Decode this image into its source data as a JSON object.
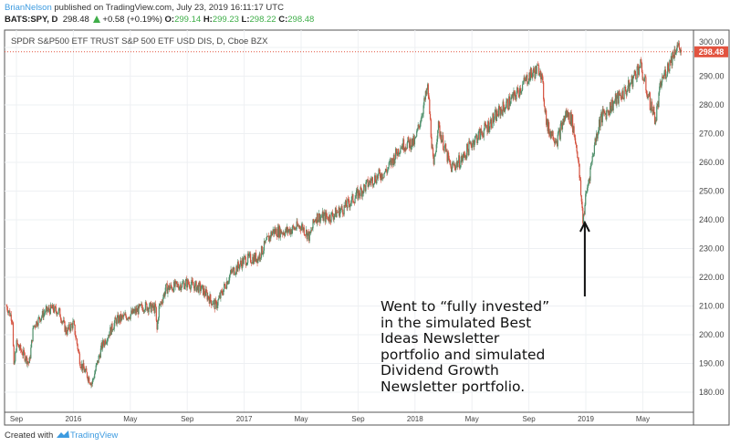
{
  "header": {
    "author": "BrianNelson",
    "published": " published on TradingView.com, July 23, 2019 16:11:17 UTC",
    "symbol": "BATS:SPY, D",
    "last": "298.48",
    "change": "+0.58 (+0.19%)",
    "o_label": "O:",
    "o": "299.14",
    "h_label": "H:",
    "h": "299.23",
    "l_label": "L:",
    "l": "298.22",
    "c_label": "C:",
    "c": "298.48"
  },
  "footer": {
    "created_with": "Created with",
    "brand": "TradingView"
  },
  "annotation": "Went to “fully invested”\nin the simulated Best\nIdeas Newsletter\nportfolio and simulated\nDividend Growth\nNewsletter portfolio.",
  "colors": {
    "up": "#4d8f6a",
    "down": "#d4513e",
    "price_label": "#e2533f",
    "author": "#3d9be0",
    "positive": "#3fae49"
  },
  "chart_data": {
    "type": "candlestick",
    "title": "SPDR S&P500 ETF TRUST S&P 500 ETF USD DIS, D, Cboe BZX",
    "last_price_label": "298.48",
    "last_price": 298.48,
    "ylim": [
      172,
      304
    ],
    "y_ticks": [
      180,
      190,
      200,
      210,
      220,
      230,
      240,
      250,
      260,
      270,
      280,
      290,
      300
    ],
    "y_tick_labels": [
      "180.00",
      "190.00",
      "200.00",
      "210.00",
      "220.00",
      "230.00",
      "240.00",
      "250.00",
      "260.00",
      "270.00",
      "280.00",
      "290.00",
      "300.00"
    ],
    "x_ticks": [
      {
        "label": "Sep",
        "month": 0
      },
      {
        "label": "2016",
        "month": 4
      },
      {
        "label": "May",
        "month": 8
      },
      {
        "label": "Sep",
        "month": 12
      },
      {
        "label": "2017",
        "month": 16
      },
      {
        "label": "May",
        "month": 20
      },
      {
        "label": "Sep",
        "month": 24
      },
      {
        "label": "2018",
        "month": 28
      },
      {
        "label": "May",
        "month": 32
      },
      {
        "label": "Sep",
        "month": 36
      },
      {
        "label": "2019",
        "month": 40
      },
      {
        "label": "May",
        "month": 44
      }
    ],
    "x_unit": "months since Sep 1 2015",
    "price_path": [
      [
        -0.7,
        210
      ],
      [
        -0.25,
        205
      ],
      [
        -0.2,
        187
      ],
      [
        0,
        197
      ],
      [
        0.9,
        190
      ],
      [
        1.2,
        203
      ],
      [
        2,
        208
      ],
      [
        2.5,
        209
      ],
      [
        3,
        208
      ],
      [
        3.5,
        201
      ],
      [
        4,
        204
      ],
      [
        4.5,
        190
      ],
      [
        5.3,
        183
      ],
      [
        6,
        196
      ],
      [
        7,
        205
      ],
      [
        8,
        207
      ],
      [
        9,
        210
      ],
      [
        9.8,
        209
      ],
      [
        9.85,
        200
      ],
      [
        10,
        209
      ],
      [
        10.5,
        216
      ],
      [
        12,
        218
      ],
      [
        13,
        216
      ],
      [
        14,
        210
      ],
      [
        14.2,
        212
      ],
      [
        15,
        221
      ],
      [
        16,
        226
      ],
      [
        17,
        227
      ],
      [
        18,
        236
      ],
      [
        19,
        236
      ],
      [
        20,
        238
      ],
      [
        20.6,
        234
      ],
      [
        21,
        241
      ],
      [
        22,
        241
      ],
      [
        23,
        244
      ],
      [
        24,
        249
      ],
      [
        25,
        254
      ],
      [
        26,
        257
      ],
      [
        27,
        266
      ],
      [
        28,
        267
      ],
      [
        28.9,
        286
      ],
      [
        29.2,
        265
      ],
      [
        29.3,
        257
      ],
      [
        29.6,
        273
      ],
      [
        30.5,
        258
      ],
      [
        31.3,
        261
      ],
      [
        32,
        267
      ],
      [
        33,
        272
      ],
      [
        34,
        278
      ],
      [
        35,
        283
      ],
      [
        36,
        290
      ],
      [
        36.8,
        293
      ],
      [
        37.3,
        272
      ],
      [
        38,
        268
      ],
      [
        38.6,
        277
      ],
      [
        39,
        275
      ],
      [
        39.4,
        264
      ],
      [
        39.8,
        240
      ],
      [
        40,
        248
      ],
      [
        40.6,
        266
      ],
      [
        41,
        275
      ],
      [
        42,
        281
      ],
      [
        43,
        286
      ],
      [
        43.8,
        294
      ],
      [
        44.5,
        281
      ],
      [
        44.9,
        275
      ],
      [
        45.3,
        288
      ],
      [
        46,
        296
      ],
      [
        46.4,
        301
      ],
      [
        46.7,
        298.48
      ]
    ],
    "arrow_target": {
      "month": 39.8,
      "price": 240
    }
  }
}
